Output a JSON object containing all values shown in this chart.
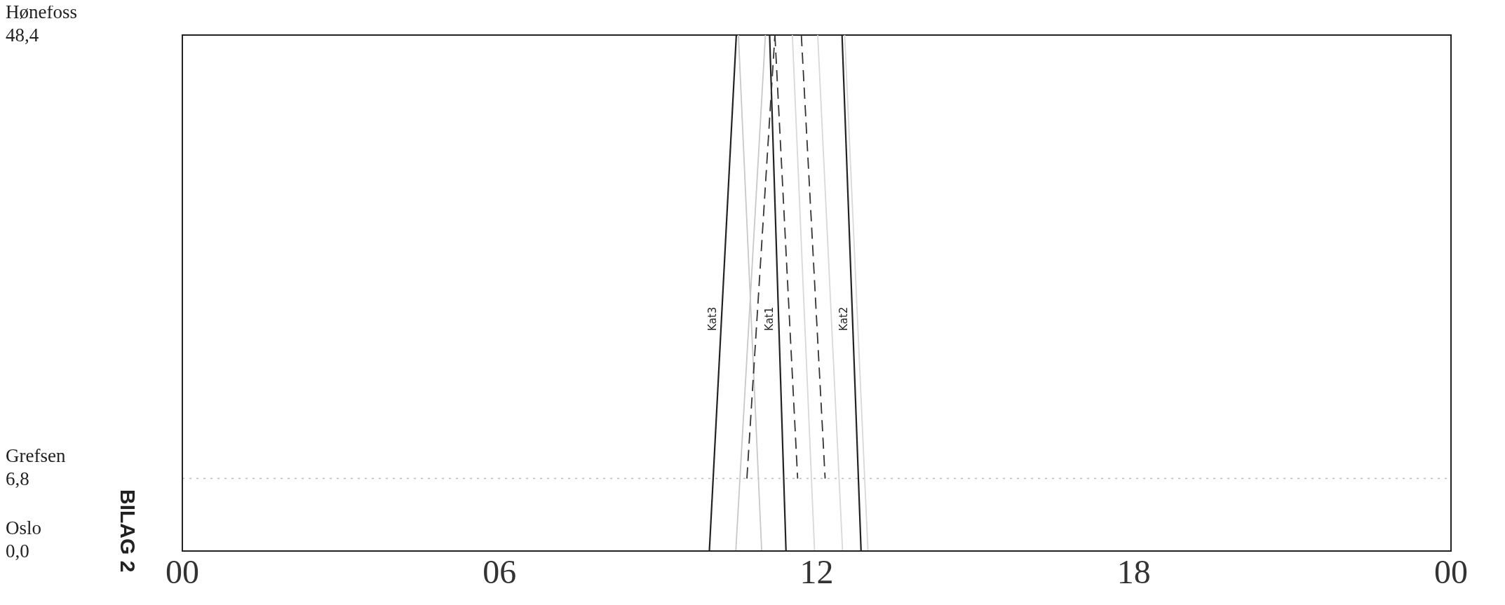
{
  "chart_data": {
    "type": "line",
    "annotations": [
      "BILAG 2",
      "Oslo",
      "Grefsen",
      "Hønefoss"
    ],
    "xlim": [
      0,
      24
    ],
    "xticks": [
      {
        "value": 0,
        "label": "00"
      },
      {
        "value": 6,
        "label": "06"
      },
      {
        "value": 12,
        "label": "12"
      },
      {
        "value": 18,
        "label": "18"
      },
      {
        "value": 24,
        "label": "00"
      }
    ],
    "ylim": [
      0,
      48.4
    ],
    "yticks": [
      {
        "value": 0,
        "label": "0,0"
      },
      {
        "value": 6.8,
        "label": "6,8"
      },
      {
        "value": 48.4,
        "label": "48,4"
      }
    ],
    "ref_lines": [
      {
        "axis": "y",
        "value": 6.8,
        "color": "#bbbbbb",
        "line_style": "dotted"
      }
    ],
    "marker": "none",
    "series": [
      {
        "name": "Kat3",
        "color": "#222222",
        "x": [
          9.97,
          10.48
        ],
        "values": [
          0,
          48.4
        ]
      },
      {
        "color": "#c8c8c8",
        "x": [
          10.52,
          10.96
        ],
        "values": [
          48.4,
          0
        ]
      },
      {
        "color": "#c8c8c8",
        "x": [
          10.47,
          11.03
        ],
        "values": [
          0,
          48.4
        ]
      },
      {
        "name": "Kat1",
        "color": "#222222",
        "x": [
          11.11,
          11.42
        ],
        "values": [
          48.4,
          0
        ]
      },
      {
        "color": "#333333",
        "line_style": "dashed",
        "x": [
          10.68,
          11.21
        ],
        "values": [
          6.8,
          48.4
        ]
      },
      {
        "color": "#333333",
        "line_style": "dashed",
        "x": [
          11.21,
          11.64
        ],
        "values": [
          48.4,
          6.8
        ]
      },
      {
        "color": "#333333",
        "line_style": "dashed",
        "x": [
          11.71,
          12.16
        ],
        "values": [
          48.4,
          6.8
        ]
      },
      {
        "color": "#d8d8d8",
        "x": [
          11.54,
          11.96
        ],
        "values": [
          48.4,
          0
        ]
      },
      {
        "color": "#d8d8d8",
        "x": [
          12.02,
          12.49
        ],
        "values": [
          48.4,
          0
        ]
      },
      {
        "name": "Kat2",
        "color": "#222222",
        "x": [
          12.48,
          12.84
        ],
        "values": [
          48.4,
          0
        ]
      },
      {
        "color": "#d8d8d8",
        "x": [
          12.53,
          12.97
        ],
        "values": [
          48.4,
          0
        ]
      }
    ]
  }
}
